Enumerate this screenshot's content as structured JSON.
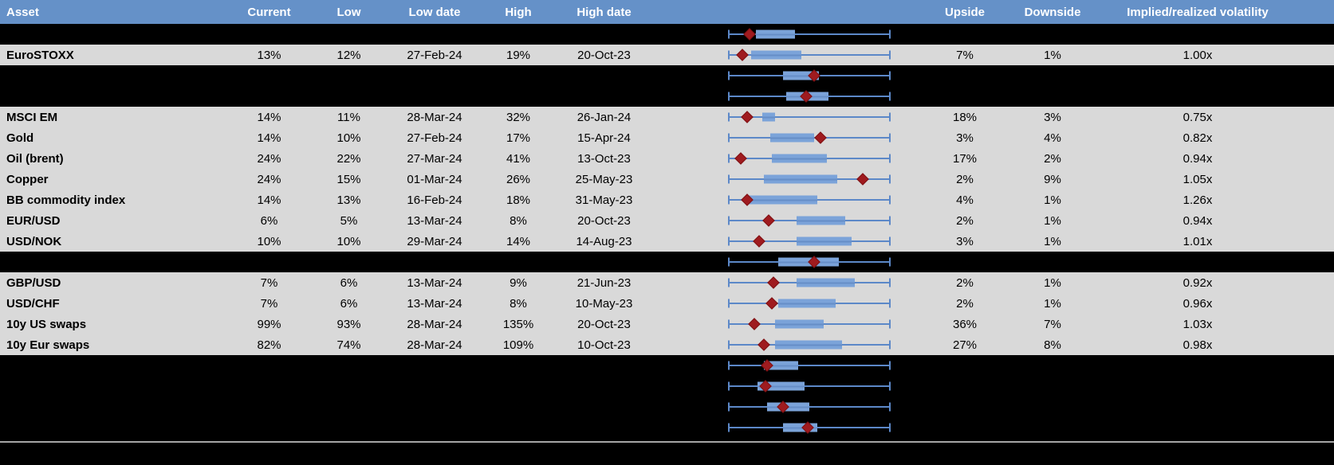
{
  "colors": {
    "header_bg": "#6591c8",
    "row_bg": "#d9d9d9",
    "hidden_row_bg": "#000000",
    "box_fill": "#7ba3d9",
    "whisker_blue": "#5c88c8",
    "marker_dark_red": "#9f1b1f",
    "separator_gray": "#a6a6a6",
    "header_text": "#ffffff",
    "body_text": "#000000"
  },
  "header": {
    "columns": {
      "asset": "Asset",
      "current": "Current",
      "low": "Low",
      "low_date": "Low date",
      "high": "High",
      "high_date": "High date",
      "plot": "",
      "upside": "Upside",
      "downside": "Downside",
      "implied": "Implied/realized volatility"
    }
  },
  "rows": [
    {
      "type": "hidden",
      "boxplot": {
        "whisker_min_pct": 0,
        "whisker_max_pct": 100,
        "box_start_pct": 17,
        "box_end_pct": 41,
        "marker_pct": 13
      }
    },
    {
      "type": "data",
      "asset": "EuroSTOXX",
      "current": "13%",
      "low": "12%",
      "low_date": "27-Feb-24",
      "high": "19%",
      "high_date": "20-Oct-23",
      "upside": "7%",
      "downside": "1%",
      "implied_realized": "1.00x",
      "boxplot": {
        "whisker_min_pct": 0,
        "whisker_max_pct": 100,
        "box_start_pct": 14,
        "box_end_pct": 45,
        "marker_pct": 9
      }
    },
    {
      "type": "hidden",
      "boxplot": {
        "whisker_min_pct": 0,
        "whisker_max_pct": 100,
        "box_start_pct": 34,
        "box_end_pct": 56,
        "marker_pct": 53
      }
    },
    {
      "type": "hidden",
      "boxplot": {
        "whisker_min_pct": 0,
        "whisker_max_pct": 100,
        "box_start_pct": 36,
        "box_end_pct": 62,
        "marker_pct": 48
      }
    },
    {
      "type": "data",
      "asset": "MSCI EM",
      "current": "14%",
      "low": "11%",
      "low_date": "28-Mar-24",
      "high": "32%",
      "high_date": "26-Jan-24",
      "upside": "18%",
      "downside": "3%",
      "implied_realized": "0.75x",
      "boxplot": {
        "whisker_min_pct": 0,
        "whisker_max_pct": 100,
        "box_start_pct": 21,
        "box_end_pct": 29,
        "marker_pct": 12
      }
    },
    {
      "type": "data",
      "asset": "Gold",
      "current": "14%",
      "low": "10%",
      "low_date": "27-Feb-24",
      "high": "17%",
      "high_date": "15-Apr-24",
      "upside": "3%",
      "downside": "4%",
      "implied_realized": "0.82x",
      "boxplot": {
        "whisker_min_pct": 0,
        "whisker_max_pct": 100,
        "box_start_pct": 26,
        "box_end_pct": 53,
        "marker_pct": 57
      }
    },
    {
      "type": "data",
      "asset": "Oil (brent)",
      "current": "24%",
      "low": "22%",
      "low_date": "27-Mar-24",
      "high": "41%",
      "high_date": "13-Oct-23",
      "upside": "17%",
      "downside": "2%",
      "implied_realized": "0.94x",
      "boxplot": {
        "whisker_min_pct": 0,
        "whisker_max_pct": 100,
        "box_start_pct": 27,
        "box_end_pct": 61,
        "marker_pct": 8
      }
    },
    {
      "type": "data",
      "asset": "Copper",
      "current": "24%",
      "low": "15%",
      "low_date": "01-Mar-24",
      "high": "26%",
      "high_date": "25-May-23",
      "upside": "2%",
      "downside": "9%",
      "implied_realized": "1.05x",
      "boxplot": {
        "whisker_min_pct": 0,
        "whisker_max_pct": 100,
        "box_start_pct": 22,
        "box_end_pct": 67,
        "marker_pct": 83
      }
    },
    {
      "type": "data",
      "asset": "BB commodity index",
      "current": "14%",
      "low": "13%",
      "low_date": "16-Feb-24",
      "high": "18%",
      "high_date": "31-May-23",
      "upside": "4%",
      "downside": "1%",
      "implied_realized": "1.26x",
      "boxplot": {
        "whisker_min_pct": 0,
        "whisker_max_pct": 100,
        "box_start_pct": 12,
        "box_end_pct": 55,
        "marker_pct": 12
      }
    },
    {
      "type": "data",
      "asset": "EUR/USD",
      "current": "6%",
      "low": "5%",
      "low_date": "13-Mar-24",
      "high": "8%",
      "high_date": "20-Oct-23",
      "upside": "2%",
      "downside": "1%",
      "implied_realized": "0.94x",
      "boxplot": {
        "whisker_min_pct": 0,
        "whisker_max_pct": 100,
        "box_start_pct": 42,
        "box_end_pct": 72,
        "marker_pct": 25
      }
    },
    {
      "type": "data",
      "asset": "USD/NOK",
      "current": "10%",
      "low": "10%",
      "low_date": "29-Mar-24",
      "high": "14%",
      "high_date": "14-Aug-23",
      "upside": "3%",
      "downside": "1%",
      "implied_realized": "1.01x",
      "boxplot": {
        "whisker_min_pct": 0,
        "whisker_max_pct": 100,
        "box_start_pct": 42,
        "box_end_pct": 76,
        "marker_pct": 19
      }
    },
    {
      "type": "hidden",
      "boxplot": {
        "whisker_min_pct": 0,
        "whisker_max_pct": 100,
        "box_start_pct": 31,
        "box_end_pct": 68,
        "marker_pct": 53
      }
    },
    {
      "type": "data",
      "asset": "GBP/USD",
      "current": "7%",
      "low": "6%",
      "low_date": "13-Mar-24",
      "high": "9%",
      "high_date": "21-Jun-23",
      "upside": "2%",
      "downside": "1%",
      "implied_realized": "0.92x",
      "boxplot": {
        "whisker_min_pct": 0,
        "whisker_max_pct": 100,
        "box_start_pct": 42,
        "box_end_pct": 78,
        "marker_pct": 28
      }
    },
    {
      "type": "data",
      "asset": "USD/CHF",
      "current": "7%",
      "low": "6%",
      "low_date": "13-Mar-24",
      "high": "8%",
      "high_date": "10-May-23",
      "upside": "2%",
      "downside": "1%",
      "implied_realized": "0.96x",
      "boxplot": {
        "whisker_min_pct": 0,
        "whisker_max_pct": 100,
        "box_start_pct": 31,
        "box_end_pct": 66,
        "marker_pct": 27
      }
    },
    {
      "type": "data",
      "asset": "10y US swaps",
      "current": "99%",
      "low": "93%",
      "low_date": "28-Mar-24",
      "high": "135%",
      "high_date": "20-Oct-23",
      "upside": "36%",
      "downside": "7%",
      "implied_realized": "1.03x",
      "boxplot": {
        "whisker_min_pct": 0,
        "whisker_max_pct": 100,
        "box_start_pct": 29,
        "box_end_pct": 59,
        "marker_pct": 16
      }
    },
    {
      "type": "data",
      "asset": "10y Eur swaps",
      "current": "82%",
      "low": "74%",
      "low_date": "28-Mar-24",
      "high": "109%",
      "high_date": "10-Oct-23",
      "upside": "27%",
      "downside": "8%",
      "implied_realized": "0.98x",
      "boxplot": {
        "whisker_min_pct": 0,
        "whisker_max_pct": 100,
        "box_start_pct": 29,
        "box_end_pct": 70,
        "marker_pct": 22
      }
    },
    {
      "type": "hidden",
      "boxplot": {
        "whisker_min_pct": 0,
        "whisker_max_pct": 100,
        "box_start_pct": 22,
        "box_end_pct": 43,
        "marker_pct": 24
      }
    },
    {
      "type": "hidden",
      "boxplot": {
        "whisker_min_pct": 0,
        "whisker_max_pct": 100,
        "box_start_pct": 18,
        "box_end_pct": 47,
        "marker_pct": 23
      }
    },
    {
      "type": "hidden",
      "boxplot": {
        "whisker_min_pct": 0,
        "whisker_max_pct": 100,
        "box_start_pct": 24,
        "box_end_pct": 50,
        "marker_pct": 34
      }
    },
    {
      "type": "hidden",
      "boxplot": {
        "whisker_min_pct": 0,
        "whisker_max_pct": 100,
        "box_start_pct": 34,
        "box_end_pct": 55,
        "marker_pct": 49
      }
    }
  ]
}
